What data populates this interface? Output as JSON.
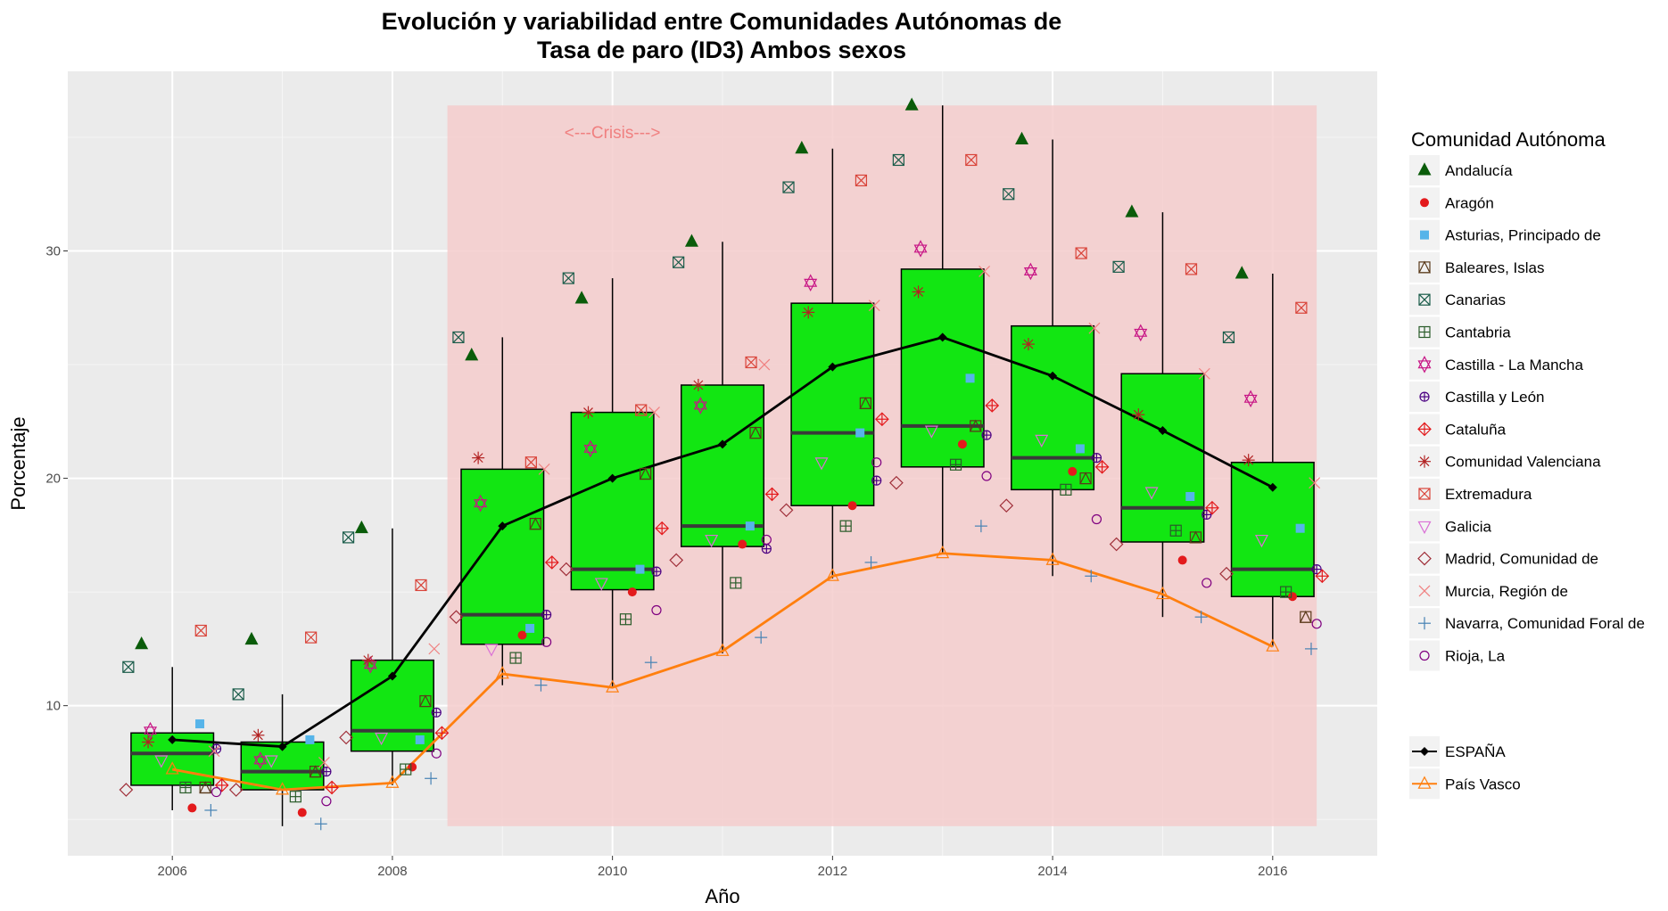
{
  "chart_data": {
    "type": "boxplot",
    "title_lines": [
      "Evolución y variabilidad entre Comunidades Autónomas de",
      "Tasa de paro (ID3) Ambos sexos"
    ],
    "xlabel": "Año",
    "ylabel": "Porcentaje",
    "xlim": [
      2005.05,
      2016.95
    ],
    "ylim": [
      3.4,
      37.9
    ],
    "x_ticks": [
      2006,
      2008,
      2010,
      2012,
      2014,
      2016
    ],
    "x_tick_labels": [
      "2006",
      "2008",
      "2010",
      "2012",
      "2014",
      "2016"
    ],
    "y_ticks": [
      10,
      20,
      30
    ],
    "y_tick_labels": [
      "10",
      "20",
      "30"
    ],
    "grid": true,
    "legend_position": "right",
    "legend_title": "Comunidad Autónoma",
    "crisis": {
      "label": "<---Crisis--->",
      "x_start": 2008.5,
      "x_end": 2016.4,
      "y_bottom": 4.7,
      "y_top": 36.4,
      "label_x": 2010.0,
      "label_y": 35.2,
      "color": "#f4cccc"
    },
    "boxes": [
      {
        "x": 2006,
        "lower": 5.4,
        "q1": 6.5,
        "median": 7.9,
        "q3": 8.8,
        "upper": 11.7
      },
      {
        "x": 2007,
        "lower": 4.7,
        "q1": 6.3,
        "median": 7.1,
        "q3": 8.4,
        "upper": 10.5
      },
      {
        "x": 2008,
        "lower": 6.5,
        "q1": 8.0,
        "median": 8.9,
        "q3": 12.0,
        "upper": 17.8
      },
      {
        "x": 2009,
        "lower": 10.9,
        "q1": 12.7,
        "median": 14.0,
        "q3": 20.4,
        "upper": 26.2
      },
      {
        "x": 2010,
        "lower": 10.8,
        "q1": 15.1,
        "median": 16.0,
        "q3": 22.9,
        "upper": 28.8
      },
      {
        "x": 2011,
        "lower": 12.3,
        "q1": 17.0,
        "median": 17.9,
        "q3": 24.1,
        "upper": 30.4
      },
      {
        "x": 2012,
        "lower": 15.6,
        "q1": 18.8,
        "median": 22.0,
        "q3": 27.7,
        "upper": 34.5
      },
      {
        "x": 2013,
        "lower": 16.7,
        "q1": 20.5,
        "median": 22.3,
        "q3": 29.2,
        "upper": 36.4
      },
      {
        "x": 2014,
        "lower": 15.7,
        "q1": 19.5,
        "median": 20.9,
        "q3": 26.7,
        "upper": 34.9
      },
      {
        "x": 2015,
        "lower": 13.9,
        "q1": 17.2,
        "median": 18.7,
        "q3": 24.6,
        "upper": 31.7
      },
      {
        "x": 2016,
        "lower": 12.6,
        "q1": 14.8,
        "median": 16.0,
        "q3": 20.7,
        "upper": 29.0
      }
    ],
    "box_fill": "#12e612",
    "series": [
      {
        "name": "Andalucía",
        "shape": "triangle",
        "color": "#0a5c0a",
        "offset": -0.28,
        "values": [
          12.7,
          12.9,
          17.8,
          25.4,
          27.9,
          30.4,
          34.5,
          36.4,
          34.9,
          31.7,
          29.0
        ]
      },
      {
        "name": "Aragón",
        "shape": "circle",
        "color": "#e31a1c",
        "offset": 0.18,
        "values": [
          5.5,
          5.3,
          7.3,
          13.1,
          15.0,
          17.1,
          18.8,
          21.5,
          20.3,
          16.4,
          14.8
        ]
      },
      {
        "name": "Asturias, Principado de",
        "shape": "square",
        "color": "#56b4e9",
        "offset": 0.25,
        "values": [
          9.2,
          8.5,
          8.5,
          13.4,
          16.0,
          17.9,
          22.0,
          24.4,
          21.3,
          19.2,
          17.8
        ]
      },
      {
        "name": "Baleares, Islas",
        "shape": "square-triangle",
        "color": "#5a3a1a",
        "offset": 0.3,
        "values": [
          6.4,
          7.1,
          10.2,
          18.0,
          20.2,
          22.0,
          23.3,
          22.3,
          20.0,
          17.4,
          13.9
        ]
      },
      {
        "name": "Canarias",
        "shape": "square-x",
        "color": "#1a5c4a",
        "offset": -0.4,
        "values": [
          11.7,
          10.5,
          17.4,
          26.2,
          28.8,
          29.5,
          32.8,
          34.0,
          32.5,
          29.3,
          26.2
        ]
      },
      {
        "name": "Cantabria",
        "shape": "square-plus",
        "color": "#2a5c2a",
        "offset": 0.12,
        "values": [
          6.4,
          6.0,
          7.2,
          12.1,
          13.8,
          15.4,
          17.9,
          20.6,
          19.5,
          17.7,
          15.0
        ]
      },
      {
        "name": "Castilla - La Mancha",
        "shape": "star-david",
        "color": "#c71585",
        "offset": -0.2,
        "values": [
          8.9,
          7.6,
          11.8,
          18.9,
          21.3,
          23.2,
          28.6,
          30.1,
          29.1,
          26.4,
          23.5
        ]
      },
      {
        "name": "Castilla y León",
        "shape": "circle-plus",
        "color": "#4b0082",
        "offset": 0.4,
        "values": [
          8.1,
          7.1,
          9.7,
          14.0,
          15.9,
          16.9,
          19.9,
          21.9,
          20.9,
          18.4,
          16.0
        ]
      },
      {
        "name": "Cataluña",
        "shape": "diamond-plus",
        "color": "#e31a1c",
        "offset": 0.45,
        "values": [
          6.5,
          6.4,
          8.8,
          16.3,
          17.8,
          19.3,
          22.6,
          23.2,
          20.5,
          18.7,
          15.7
        ]
      },
      {
        "name": "Comunidad Valenciana",
        "shape": "star",
        "color": "#b22222",
        "offset": -0.22,
        "values": [
          8.4,
          8.7,
          12.0,
          20.9,
          22.9,
          24.1,
          27.3,
          28.2,
          25.9,
          22.8,
          20.8
        ]
      },
      {
        "name": "Extremadura",
        "shape": "square-x",
        "color": "#d9443a",
        "offset": 0.26,
        "values": [
          13.3,
          13.0,
          15.3,
          20.7,
          23.0,
          25.1,
          33.1,
          34.0,
          29.9,
          29.2,
          27.5
        ]
      },
      {
        "name": "Galicia",
        "shape": "triangle-down",
        "color": "#da70d6",
        "offset": -0.1,
        "values": [
          7.6,
          7.6,
          8.6,
          12.5,
          15.4,
          17.3,
          20.7,
          22.1,
          21.7,
          19.4,
          17.3
        ]
      },
      {
        "name": "Madrid, Comunidad de",
        "shape": "diamond",
        "color": "#a0303a",
        "offset": -0.42,
        "values": [
          6.3,
          6.3,
          8.6,
          13.9,
          16.0,
          16.4,
          18.6,
          19.8,
          18.8,
          17.1,
          15.8
        ]
      },
      {
        "name": "Murcia, Región de",
        "shape": "cross",
        "color": "#f08080",
        "offset": 0.38,
        "values": [
          8.0,
          7.5,
          12.5,
          20.4,
          22.9,
          25.0,
          27.6,
          29.1,
          26.6,
          24.6,
          19.8
        ]
      },
      {
        "name": "Navarra, Comunidad Foral de",
        "shape": "plus",
        "color": "#4682b4",
        "offset": 0.35,
        "values": [
          5.4,
          4.8,
          6.8,
          10.9,
          11.9,
          13.0,
          16.3,
          17.9,
          15.7,
          13.9,
          12.5
        ]
      },
      {
        "name": "Rioja, La",
        "shape": "circle-open",
        "color": "#800080",
        "offset": 0.4,
        "values": [
          6.2,
          5.8,
          7.9,
          12.8,
          14.2,
          17.3,
          20.7,
          20.1,
          18.2,
          15.4,
          13.6
        ]
      }
    ],
    "lines": [
      {
        "name": "ESPAÑA",
        "shape": "diamond-filled",
        "color": "#000000",
        "x": [
          2006,
          2007,
          2008,
          2009,
          2010,
          2011,
          2012,
          2013,
          2014,
          2015,
          2016
        ],
        "values": [
          8.5,
          8.2,
          11.3,
          17.9,
          20.0,
          21.5,
          24.9,
          26.2,
          24.5,
          22.1,
          19.6
        ]
      },
      {
        "name": "País Vasco",
        "shape": "triangle-open",
        "color": "#ff7f0e",
        "x": [
          2006,
          2007,
          2008,
          2009,
          2010,
          2011,
          2012,
          2013,
          2014,
          2015,
          2016
        ],
        "values": [
          7.2,
          6.3,
          6.6,
          11.4,
          10.8,
          12.4,
          15.7,
          16.7,
          16.4,
          14.9,
          12.6
        ]
      }
    ]
  }
}
